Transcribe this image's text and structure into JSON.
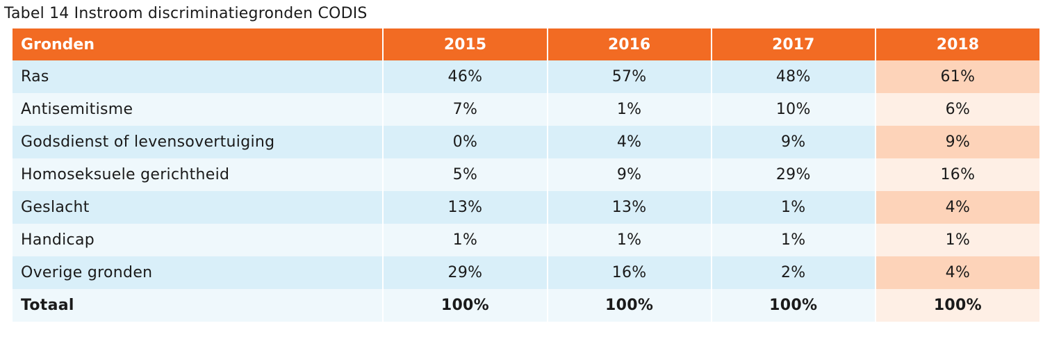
{
  "caption": "Tabel 14 Instroom discriminatiegronden CODIS",
  "table": {
    "headers": [
      "Gronden",
      "2015",
      "2016",
      "2017",
      "2018"
    ],
    "rows": [
      {
        "ground": "Ras",
        "values": [
          "46%",
          "57%",
          "48%",
          "61%"
        ]
      },
      {
        "ground": "Antisemitisme",
        "values": [
          "7%",
          "1%",
          "10%",
          "6%"
        ]
      },
      {
        "ground": "Godsdienst of levensovertuiging",
        "values": [
          "0%",
          "4%",
          "9%",
          "9%"
        ]
      },
      {
        "ground": "Homoseksuele gerichtheid",
        "values": [
          "5%",
          "9%",
          "29%",
          "16%"
        ]
      },
      {
        "ground": "Geslacht",
        "values": [
          "13%",
          "13%",
          "1%",
          "4%"
        ]
      },
      {
        "ground": "Handicap",
        "values": [
          "1%",
          "1%",
          "1%",
          "1%"
        ]
      },
      {
        "ground": "Overige gronden",
        "values": [
          "29%",
          "16%",
          "2%",
          "4%"
        ]
      }
    ],
    "total": {
      "ground": "Totaal",
      "values": [
        "100%",
        "100%",
        "100%",
        "100%"
      ]
    }
  },
  "colors": {
    "header_bg": "#f26b23",
    "row_odd": "#d9eff9",
    "row_even": "#eff8fc",
    "highlight_odd": "#fdd3b9",
    "highlight_even": "#feefe5"
  }
}
